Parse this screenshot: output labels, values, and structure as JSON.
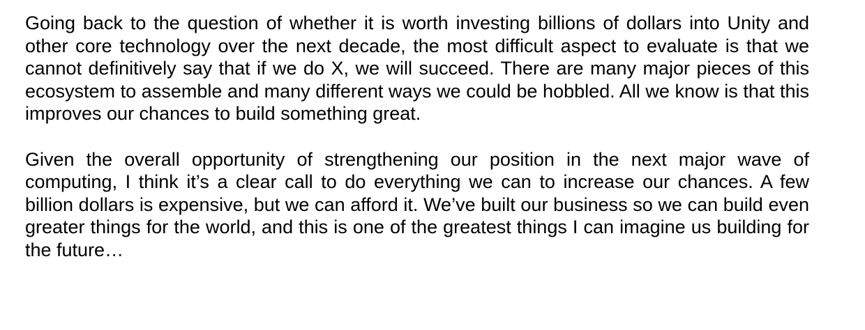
{
  "paragraphs": [
    "Going back to the question of whether it is worth investing billions of dollars into Unity and other core technology over the next decade, the most difficult aspect to evaluate is that we cannot definitively say that if we do X, we will succeed. There are many major pieces of this ecosystem to assemble and many different ways we could be hobbled. All we know is that this improves our chances to build something great.",
    "Given the overall opportunity of strengthening our position in the next major wave of computing, I think it’s a clear call to do everything we can to increase our chances. A few billion dollars is expensive, but we can afford it. We’ve built our business so we can build even greater things for the world, and this is one of the greatest things I can imagine us building for the future…"
  ]
}
